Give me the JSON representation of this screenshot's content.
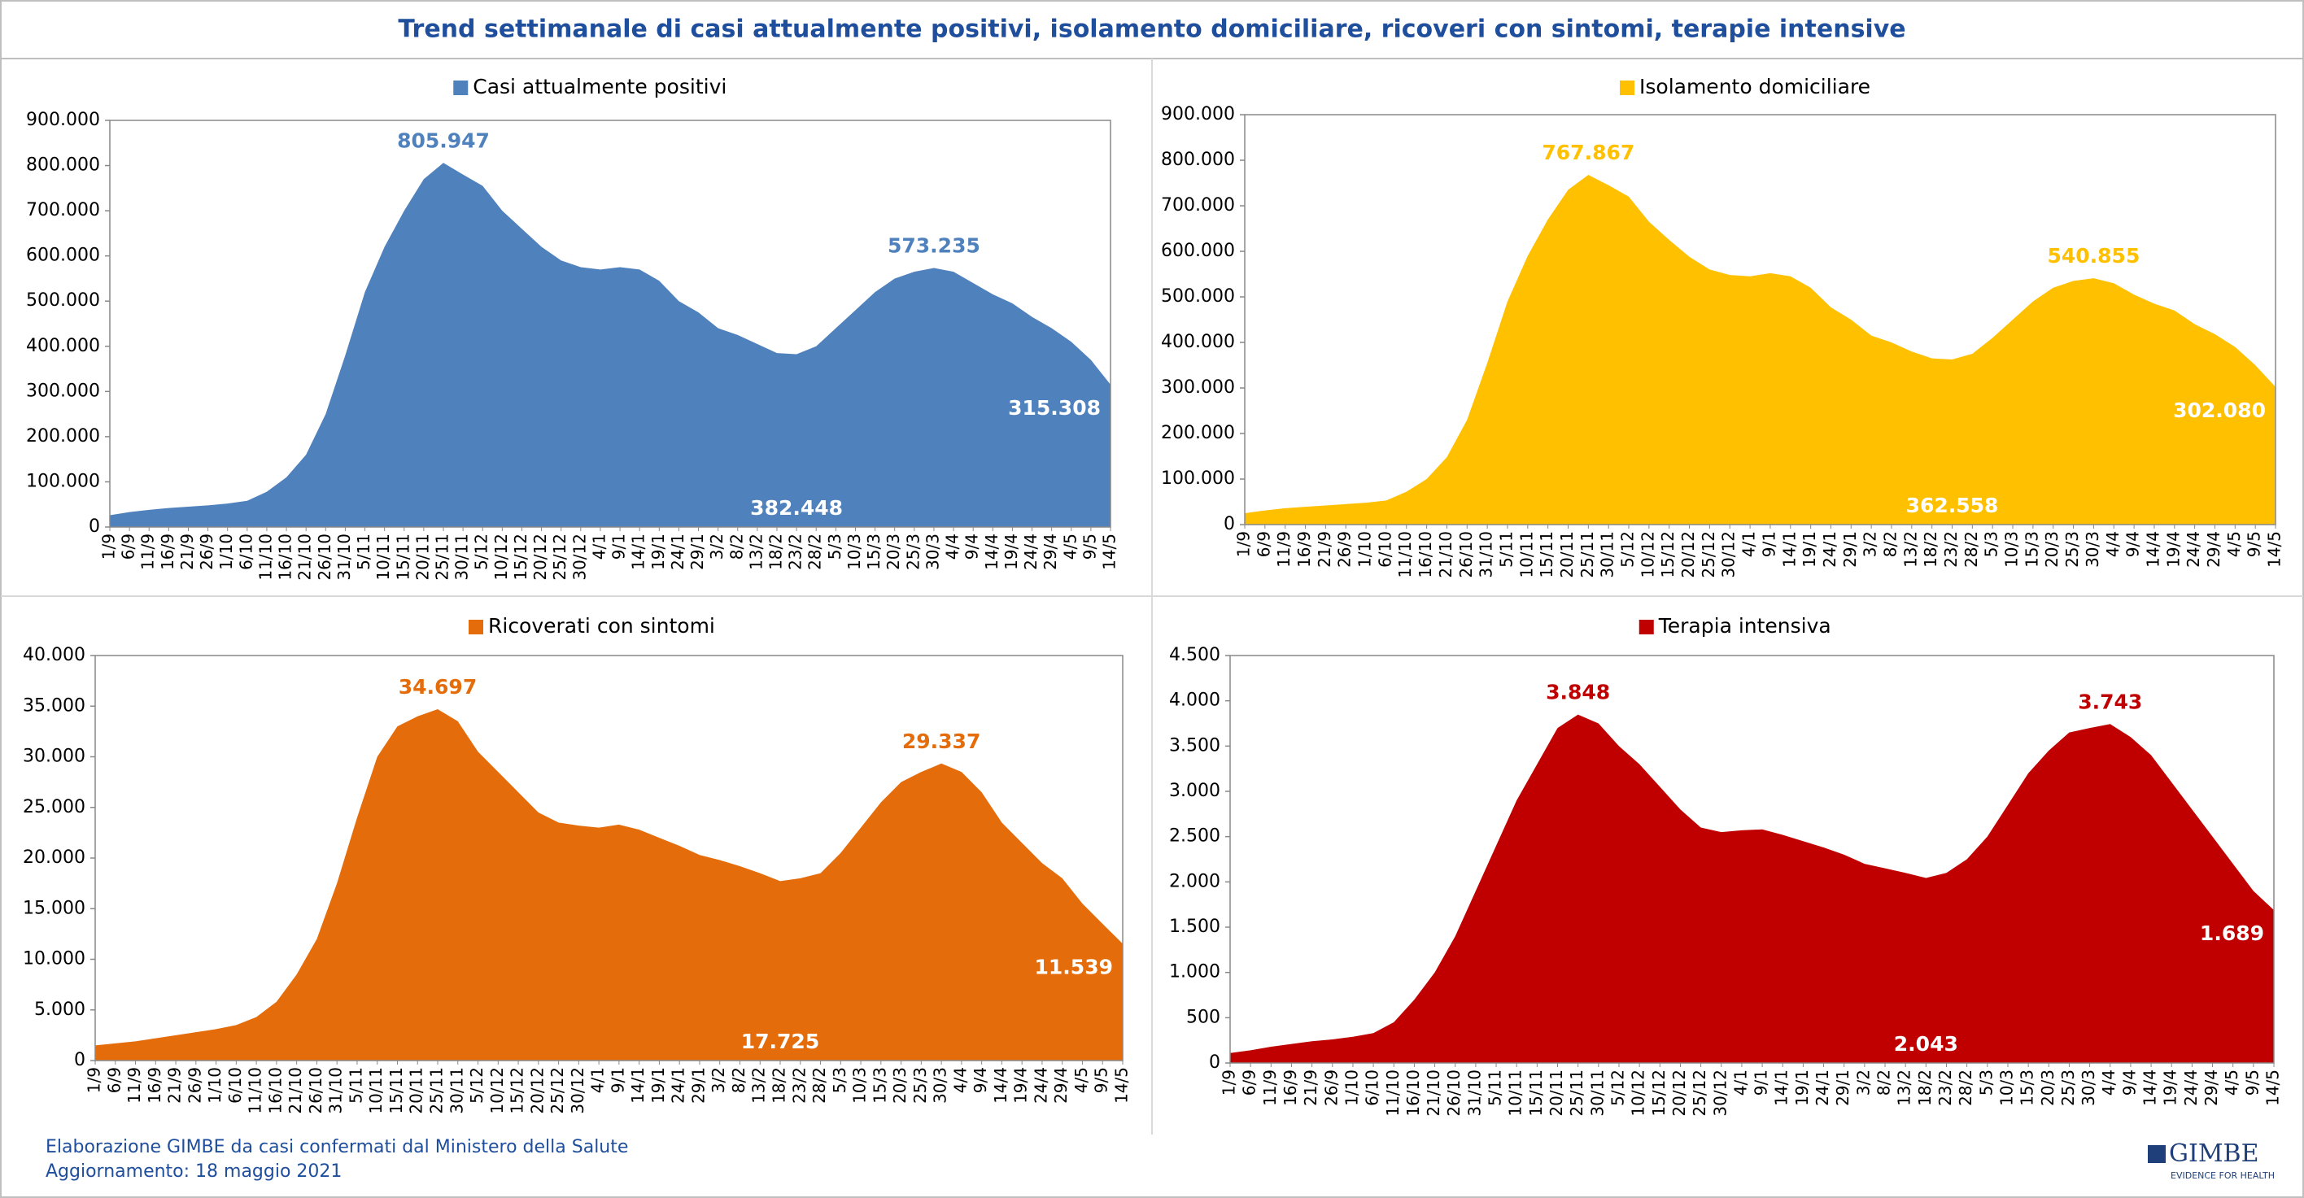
{
  "title": "Trend settimanale di casi attualmente positivi, isolamento domiciliare, ricoveri con sintomi, terapie intensive",
  "footer": [
    "Elaborazione GIMBE da casi confermati dal Ministero della Salute",
    "Aggiornamento: 18 maggio 2021"
  ],
  "logo": {
    "name": "GIMBE",
    "tagline": "EVIDENCE FOR HEALTH"
  },
  "chart_data": [
    {
      "type": "area",
      "categories": [
        "1/9",
        "6/9",
        "11/9",
        "16/9",
        "21/9",
        "26/9",
        "1/10",
        "6/10",
        "11/10",
        "16/10",
        "21/10",
        "26/10",
        "31/10",
        "5/11",
        "10/11",
        "15/11",
        "20/11",
        "25/11",
        "30/11",
        "5/12",
        "10/12",
        "15/12",
        "20/12",
        "25/12",
        "30/12",
        "4/1",
        "9/1",
        "14/1",
        "19/1",
        "24/1",
        "29/1",
        "3/2",
        "8/2",
        "13/2",
        "18/2",
        "23/2",
        "28/2",
        "5/3",
        "10/3",
        "15/3",
        "20/3",
        "25/3",
        "30/3",
        "4/4",
        "9/4",
        "14/4",
        "19/4",
        "24/4",
        "29/4",
        "4/5",
        "9/5",
        "14/5"
      ],
      "series": [
        {
          "name": "Casi attualmente positivi",
          "color": "#4f81bd",
          "values": [
            26000,
            33000,
            38000,
            42000,
            45000,
            48000,
            52000,
            58000,
            78000,
            110000,
            160000,
            250000,
            380000,
            520000,
            620000,
            700000,
            770000,
            805947,
            780000,
            755000,
            700000,
            660000,
            620000,
            590000,
            575000,
            570000,
            575000,
            570000,
            545000,
            500000,
            475000,
            440000,
            425000,
            405000,
            385000,
            382448,
            400000,
            440000,
            480000,
            520000,
            550000,
            565000,
            573235,
            565000,
            540000,
            515000,
            495000,
            465000,
            440000,
            410000,
            370000,
            315308
          ]
        }
      ],
      "ylim": [
        0,
        900000
      ],
      "yticks": [
        0,
        {
          "value": 100000,
          "label": "100.000"
        },
        {
          "value": 200000,
          "label": "200.000"
        },
        {
          "value": 300000,
          "label": "300.000"
        },
        {
          "value": 400000,
          "label": "400.000"
        },
        {
          "value": 500000,
          "label": "500.000"
        },
        {
          "value": 600000,
          "label": "600.000"
        },
        {
          "value": 700000,
          "label": "700.000"
        },
        {
          "value": 800000,
          "label": "800.000"
        },
        {
          "value": 900000,
          "label": "900.000"
        }
      ],
      "grid": false,
      "annotations": [
        {
          "label": "805.947",
          "value": 805947,
          "x": "25/11",
          "color": "#4f81bd"
        },
        {
          "label": "573.235",
          "value": 573235,
          "x": "30/3",
          "color": "#4f81bd"
        },
        {
          "label": "382.448",
          "value": 382448,
          "x": "23/2",
          "color": "#ffffff"
        },
        {
          "label": "315.308",
          "value": 315308,
          "x": "14/5",
          "color": "#ffffff"
        }
      ]
    },
    {
      "type": "area",
      "categories": [
        "1/9",
        "6/9",
        "11/9",
        "16/9",
        "21/9",
        "26/9",
        "1/10",
        "6/10",
        "11/10",
        "16/10",
        "21/10",
        "26/10",
        "31/10",
        "5/11",
        "10/11",
        "15/11",
        "20/11",
        "25/11",
        "30/11",
        "5/12",
        "10/12",
        "15/12",
        "20/12",
        "25/12",
        "30/12",
        "4/1",
        "9/1",
        "14/1",
        "19/1",
        "24/1",
        "29/1",
        "3/2",
        "8/2",
        "13/2",
        "18/2",
        "23/2",
        "28/2",
        "5/3",
        "10/3",
        "15/3",
        "20/3",
        "25/3",
        "30/3",
        "4/4",
        "9/4",
        "14/4",
        "19/4",
        "24/4",
        "29/4",
        "4/5",
        "9/5",
        "14/5"
      ],
      "series": [
        {
          "name": "Isolamento domiciliare",
          "color": "#ffc000",
          "values": [
            25000,
            31000,
            36000,
            39000,
            42000,
            45000,
            48000,
            53000,
            72000,
            100000,
            148000,
            230000,
            355000,
            490000,
            590000,
            670000,
            735000,
            767867,
            745000,
            720000,
            665000,
            625000,
            588000,
            560000,
            548000,
            545000,
            552000,
            545000,
            520000,
            477000,
            450000,
            415000,
            400000,
            380000,
            365000,
            362558,
            375000,
            410000,
            450000,
            490000,
            520000,
            535000,
            540855,
            530000,
            505000,
            485000,
            470000,
            440000,
            418000,
            390000,
            350000,
            302080
          ]
        }
      ],
      "ylim": [
        0,
        900000
      ],
      "yticks": [
        0,
        {
          "value": 100000,
          "label": "100.000"
        },
        {
          "value": 200000,
          "label": "200.000"
        },
        {
          "value": 300000,
          "label": "300.000"
        },
        {
          "value": 400000,
          "label": "400.000"
        },
        {
          "value": 500000,
          "label": "500.000"
        },
        {
          "value": 600000,
          "label": "600.000"
        },
        {
          "value": 700000,
          "label": "700.000"
        },
        {
          "value": 800000,
          "label": "800.000"
        },
        {
          "value": 900000,
          "label": "900.000"
        }
      ],
      "grid": false,
      "annotations": [
        {
          "label": "767.867",
          "value": 767867,
          "x": "25/11",
          "color": "#ffc000"
        },
        {
          "label": "540.855",
          "value": 540855,
          "x": "30/3",
          "color": "#ffc000"
        },
        {
          "label": "362.558",
          "value": 362558,
          "x": "23/2",
          "color": "#ffffff"
        },
        {
          "label": "302.080",
          "value": 302080,
          "x": "14/5",
          "color": "#ffffff"
        }
      ]
    },
    {
      "type": "area",
      "categories": [
        "1/9",
        "6/9",
        "11/9",
        "16/9",
        "21/9",
        "26/9",
        "1/10",
        "6/10",
        "11/10",
        "16/10",
        "21/10",
        "26/10",
        "31/10",
        "5/11",
        "10/11",
        "15/11",
        "20/11",
        "25/11",
        "30/11",
        "5/12",
        "10/12",
        "15/12",
        "20/12",
        "25/12",
        "30/12",
        "4/1",
        "9/1",
        "14/1",
        "19/1",
        "24/1",
        "29/1",
        "3/2",
        "8/2",
        "13/2",
        "18/2",
        "23/2",
        "28/2",
        "5/3",
        "10/3",
        "15/3",
        "20/3",
        "25/3",
        "30/3",
        "4/4",
        "9/4",
        "14/4",
        "19/4",
        "24/4",
        "29/4",
        "4/5",
        "9/5",
        "14/5"
      ],
      "series": [
        {
          "name": "Ricoverati con sintomi",
          "color": "#e46c0a",
          "values": [
            1500,
            1700,
            1900,
            2200,
            2500,
            2800,
            3100,
            3500,
            4300,
            5800,
            8500,
            12000,
            17500,
            24000,
            30000,
            33000,
            34000,
            34697,
            33500,
            30500,
            28500,
            26500,
            24500,
            23500,
            23200,
            23000,
            23300,
            22800,
            22000,
            21200,
            20300,
            19800,
            19200,
            18500,
            17725,
            18000,
            18500,
            20500,
            23000,
            25500,
            27500,
            28500,
            29337,
            28500,
            26500,
            23500,
            21500,
            19500,
            18000,
            15500,
            13500,
            11539
          ]
        }
      ],
      "ylim": [
        0,
        40000
      ],
      "yticks": [
        0,
        {
          "value": 5000,
          "label": "5.000"
        },
        {
          "value": 10000,
          "label": "10.000"
        },
        {
          "value": 15000,
          "label": "15.000"
        },
        {
          "value": 20000,
          "label": "20.000"
        },
        {
          "value": 25000,
          "label": "25.000"
        },
        {
          "value": 30000,
          "label": "30.000"
        },
        {
          "value": 35000,
          "label": "35.000"
        },
        {
          "value": 40000,
          "label": "40.000"
        }
      ],
      "grid": false,
      "annotations": [
        {
          "label": "34.697",
          "value": 34697,
          "x": "25/11",
          "color": "#e46c0a"
        },
        {
          "label": "29.337",
          "value": 29337,
          "x": "30/3",
          "color": "#e46c0a"
        },
        {
          "label": "17.725",
          "value": 17725,
          "x": "18/2",
          "color": "#ffffff"
        },
        {
          "label": "11.539",
          "value": 11539,
          "x": "14/5",
          "color": "#ffffff"
        }
      ]
    },
    {
      "type": "area",
      "categories": [
        "1/9",
        "6/9",
        "11/9",
        "16/9",
        "21/9",
        "26/9",
        "1/10",
        "6/10",
        "11/10",
        "16/10",
        "21/10",
        "26/10",
        "31/10",
        "5/11",
        "10/11",
        "15/11",
        "20/11",
        "25/11",
        "30/11",
        "5/12",
        "10/12",
        "15/12",
        "20/12",
        "25/12",
        "30/12",
        "4/1",
        "9/1",
        "14/1",
        "19/1",
        "24/1",
        "29/1",
        "3/2",
        "8/2",
        "13/2",
        "18/2",
        "23/2",
        "28/2",
        "5/3",
        "10/3",
        "15/3",
        "20/3",
        "25/3",
        "30/3",
        "4/4",
        "9/4",
        "14/4",
        "19/4",
        "24/4",
        "29/4",
        "4/5",
        "9/5",
        "14/5"
      ],
      "series": [
        {
          "name": "Terapia intensiva",
          "color": "#c00000",
          "values": [
            110,
            140,
            180,
            210,
            240,
            260,
            290,
            330,
            450,
            700,
            1000,
            1400,
            1900,
            2400,
            2900,
            3300,
            3700,
            3848,
            3750,
            3500,
            3300,
            3050,
            2800,
            2600,
            2550,
            2570,
            2580,
            2520,
            2450,
            2380,
            2300,
            2200,
            2150,
            2100,
            2043,
            2100,
            2250,
            2500,
            2850,
            3200,
            3450,
            3650,
            3700,
            3743,
            3600,
            3400,
            3100,
            2800,
            2500,
            2200,
            1900,
            1689
          ]
        }
      ],
      "ylim": [
        0,
        4500
      ],
      "yticks": [
        0,
        500,
        {
          "value": 1000,
          "label": "1.000"
        },
        {
          "value": 1500,
          "label": "1.500"
        },
        {
          "value": 2000,
          "label": "2.000"
        },
        {
          "value": 2500,
          "label": "2.500"
        },
        {
          "value": 3000,
          "label": "3.000"
        },
        {
          "value": 3500,
          "label": "3.500"
        },
        {
          "value": 4000,
          "label": "4.000"
        },
        {
          "value": 4500,
          "label": "4.500"
        }
      ],
      "grid": false,
      "annotations": [
        {
          "label": "3.848",
          "value": 3848,
          "x": "25/11",
          "color": "#c00000"
        },
        {
          "label": "3.743",
          "value": 3743,
          "x": "4/4",
          "color": "#c00000"
        },
        {
          "label": "2.043",
          "value": 2043,
          "x": "18/2",
          "color": "#ffffff"
        },
        {
          "label": "1.689",
          "value": 1689,
          "x": "14/5",
          "color": "#ffffff"
        }
      ]
    }
  ]
}
